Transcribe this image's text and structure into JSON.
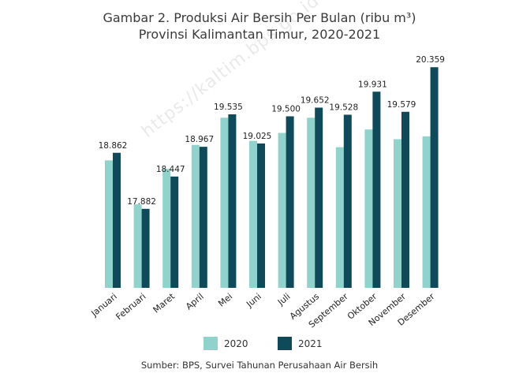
{
  "title_line1": "Gambar 2. Produksi Air Bersih Per Bulan (ribu m³)",
  "title_line2": "Provinsi Kalimantan Timur, 2020-2021",
  "source": "Sumber: BPS, Survei Tahunan Perusahaan Air Bersih",
  "watermark": "https://kaltim.bps.go.id",
  "colors": {
    "series_2020": "#8fd3cc",
    "series_2021": "#0f4a5a"
  },
  "chart_data": {
    "type": "bar",
    "title": "Gambar 2. Produksi Air Bersih Per Bulan (ribu m³) Provinsi Kalimantan Timur, 2020-2021",
    "xlabel": "",
    "ylabel": "",
    "categories": [
      "Januari",
      "Februari",
      "Maret",
      "April",
      "Mei",
      "Juni",
      "Juli",
      "Agustus",
      "September",
      "Oktober",
      "November",
      "Desember"
    ],
    "series": [
      {
        "name": "2020",
        "values": [
          18730,
          17960,
          18580,
          19000,
          19475,
          19070,
          19210,
          19475,
          18960,
          19270,
          19100,
          19150
        ]
      },
      {
        "name": "2021",
        "values": [
          18862,
          17882,
          18447,
          18967,
          19535,
          19025,
          19500,
          19652,
          19528,
          19931,
          19579,
          20359
        ]
      }
    ],
    "data_labels_2021": [
      "18.862",
      "17.882",
      "18.447",
      "18.967",
      "19.535",
      "19.025",
      "19.500",
      "19.652",
      "19.528",
      "19.931",
      "19.579",
      "20.359"
    ],
    "ylim": [
      16500,
      20500
    ],
    "grid": false,
    "legend_position": "bottom"
  }
}
